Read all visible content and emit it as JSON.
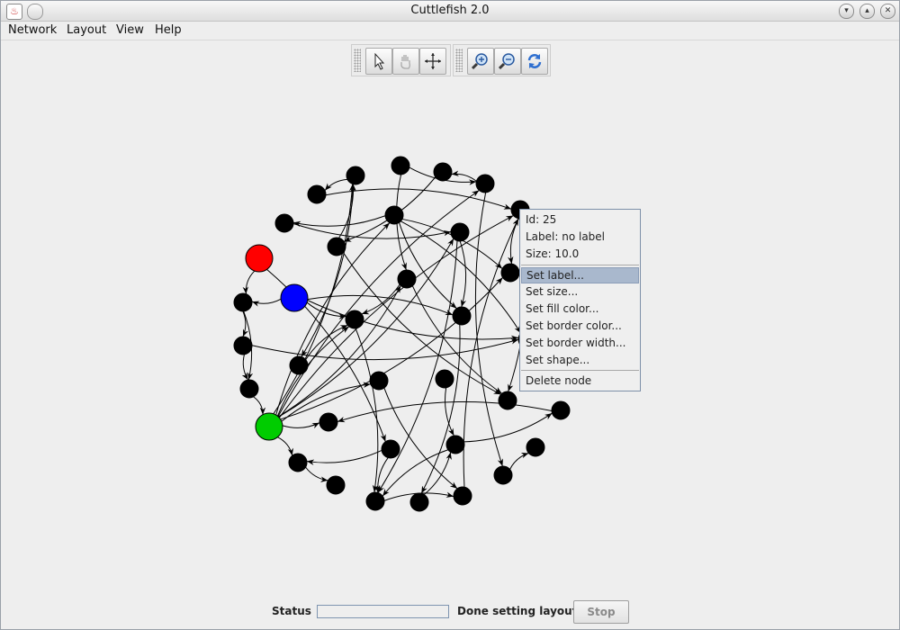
{
  "window": {
    "title": "Cuttlefish 2.0"
  },
  "menu": [
    "Network",
    "Layout",
    "View",
    "Help"
  ],
  "toolbar": {
    "group1": [
      "select-icon",
      "pan-icon",
      "move-icon"
    ],
    "group2": [
      "zoom-in-icon",
      "zoom-out-icon",
      "refresh-icon"
    ]
  },
  "graph": {
    "node_colors": {
      "default": "#000000",
      "red": "#ff0000",
      "blue": "#0000ff",
      "green": "#00cc00"
    }
  },
  "context_menu": {
    "id": "Id: 25",
    "label": "Label: no label",
    "size": "Size: 10.0",
    "items": [
      "Set label...",
      "Set size...",
      "Set fill color...",
      "Set border color...",
      "Set border width...",
      "Set shape..."
    ],
    "delete": "Delete node"
  },
  "status": {
    "label": "Status",
    "text": "Done setting layout",
    "stop": "Stop",
    "progress": 0
  }
}
